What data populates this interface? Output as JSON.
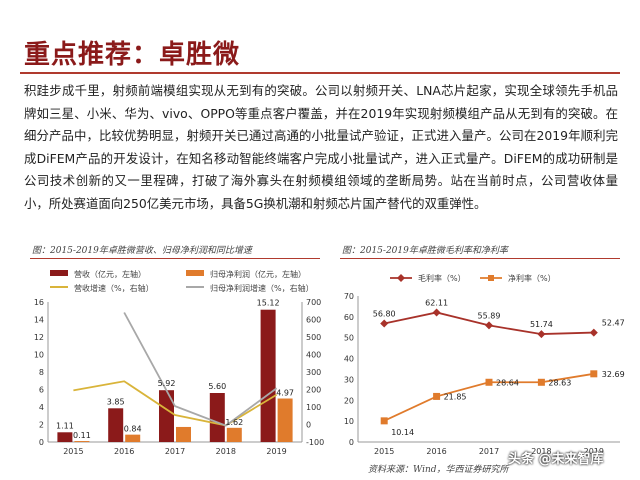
{
  "page": {
    "title": "重点推荐：卓胜微",
    "paragraph": "积跬步成千里，射频前端模组实现从无到有的突破。公司以射频开关、LNA芯片起家，实现全球领先手机品牌如三星、小米、华为、vivo、OPPO等重点客户覆盖，并在2019年实现射频模组产品从无到有的突破。在细分产品中，比较优势明显，射频开关已通过高通的小批量试产验证，正式进入量产。公司在2019年顺利完成DiFEM产品的开发设计，在知名移动智能终端客户完成小批量试产，进入正式量产。DiFEM的成功研制是公司技术创新的又一里程碑，打破了海外寡头在射频模组领域的垄断局势。站在当前时点，公司营收体量小，所处赛道面向250亿美元市场，具备5G换机潮和射频芯片国产替代的双重弹性。",
    "source": "资料来源：Wind，华西证券研究所",
    "watermark": "头条 @未来智库"
  },
  "colors": {
    "bar_revenue": "#8b1a1a",
    "bar_profit": "#e07b2c",
    "line_rev_growth": "#d9b43a",
    "line_profit_growth": "#a8a8a8",
    "gross": "#a8322a",
    "net": "#e07b2c"
  },
  "chart_data": [
    {
      "type": "bar",
      "caption": "图：2015-2019年卓胜微营收、归母净利润和同比增速",
      "categories": [
        "2015",
        "2016",
        "2017",
        "2018",
        "2019"
      ],
      "legend": [
        "营收（亿元，左轴）",
        "归母净利润（亿元，左轴）",
        "营收增速（%，右轴）",
        "归母净利润增速（%，右轴）"
      ],
      "series": [
        {
          "name": "营收（亿元，左轴）",
          "axis": "left",
          "type": "bar",
          "values": [
            1.11,
            3.85,
            5.92,
            5.6,
            15.12
          ],
          "labels": [
            "1.11",
            "3.85",
            "5.92",
            "5.60",
            "15.12"
          ]
        },
        {
          "name": "归母净利润（亿元，左轴）",
          "axis": "left",
          "type": "bar",
          "values": [
            0.11,
            0.84,
            1.72,
            1.62,
            4.97
          ],
          "labels": [
            "0.11",
            "0.84",
            "",
            "1.62",
            "4.97"
          ]
        },
        {
          "name": "营收增速（%，右轴）",
          "axis": "right",
          "type": "line",
          "values": [
            195,
            247,
            54,
            -5,
            170
          ]
        },
        {
          "name": "归母净利润增速（%，右轴）",
          "axis": "right",
          "type": "line",
          "values": [
            null,
            640,
            105,
            -6,
            207
          ]
        }
      ],
      "ylim_left": [
        0,
        16
      ],
      "yticks_left": [
        0,
        2,
        4,
        6,
        8,
        10,
        12,
        14,
        16
      ],
      "ylim_right": [
        -100,
        700
      ],
      "yticks_right": [
        -100,
        0,
        100,
        200,
        300,
        400,
        500,
        600,
        700
      ]
    },
    {
      "type": "line",
      "caption": "图：2015-2019年卓胜微毛利率和净利率",
      "categories": [
        "2015",
        "2016",
        "2017",
        "2018",
        "2019"
      ],
      "legend": [
        "毛利率（%）",
        "净利率（%）"
      ],
      "series": [
        {
          "name": "毛利率（%）",
          "values": [
            56.8,
            62.11,
            55.89,
            51.74,
            52.47
          ],
          "labels": [
            "56.80",
            "62.11",
            "55.89",
            "51.74",
            "52.47"
          ]
        },
        {
          "name": "净利率（%）",
          "values": [
            10.14,
            21.85,
            28.64,
            28.63,
            32.69
          ],
          "labels": [
            "10.14",
            "21.85",
            "28.64",
            "28.63",
            "32.69"
          ]
        }
      ],
      "ylim": [
        0,
        70
      ],
      "yticks": [
        0,
        10,
        20,
        30,
        40,
        50,
        60,
        70
      ]
    }
  ]
}
